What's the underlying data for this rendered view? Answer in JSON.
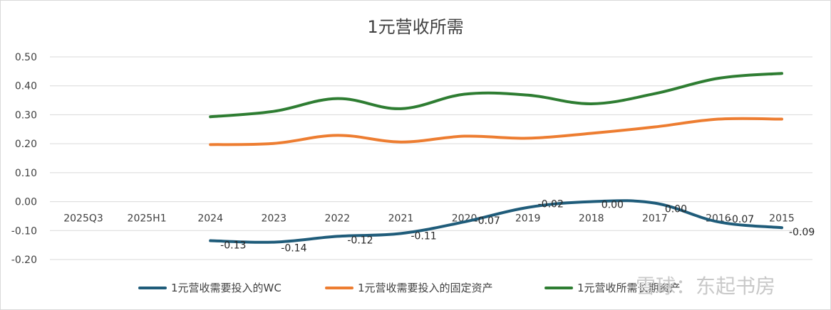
{
  "chart_data": {
    "type": "line",
    "title": "1元营收所需",
    "xlabel": "",
    "ylabel": "",
    "categories": [
      "2025Q3",
      "2025H1",
      "2024",
      "2023",
      "2022",
      "2021",
      "2020",
      "2019",
      "2018",
      "2017",
      "2016",
      "2015"
    ],
    "ylim": [
      -0.2,
      0.5
    ],
    "yticks": [
      0.5,
      0.4,
      0.3,
      0.2,
      0.1,
      0.0,
      -0.1,
      -0.2
    ],
    "ytick_labels": [
      "0.50",
      "0.40",
      "0.30",
      "0.20",
      "0.10",
      "0.00",
      "-0.10",
      "-0.20"
    ],
    "grid": true,
    "legend_position": "bottom",
    "series": [
      {
        "name": "1元营收需要投入的WC",
        "color": "#1f5c7a",
        "values": [
          null,
          null,
          -0.135,
          -0.14,
          -0.12,
          -0.11,
          -0.07,
          -0.02,
          0.0,
          -0.005,
          -0.07,
          -0.09
        ],
        "data_labels": [
          null,
          null,
          "-0.13",
          "-0.14",
          "-0.12",
          "-0.11",
          "-0.07",
          "-0.02",
          "0.00",
          "0.00",
          "-0.07",
          "-0.09"
        ]
      },
      {
        "name": "1元营收需要投入的固定资产",
        "color": "#ed7d31",
        "values": [
          null,
          null,
          0.197,
          0.201,
          0.229,
          0.206,
          0.226,
          0.219,
          0.236,
          0.258,
          0.285,
          0.285
        ]
      },
      {
        "name": "1元营收所需长期资产",
        "color": "#2e7d32",
        "values": [
          null,
          null,
          0.293,
          0.312,
          0.356,
          0.321,
          0.371,
          0.368,
          0.338,
          0.373,
          0.426,
          0.443
        ]
      }
    ]
  },
  "watermark": {
    "text": "雪球：东起书房"
  }
}
